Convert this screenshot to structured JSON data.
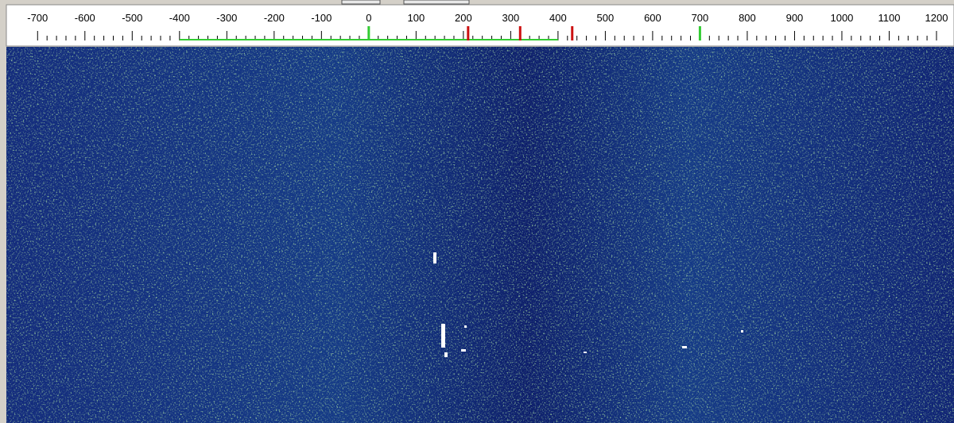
{
  "ruler": {
    "range": [
      -766,
      1237
    ],
    "ticks": [
      -700,
      -600,
      -500,
      -400,
      -300,
      -200,
      -100,
      0,
      100,
      200,
      300,
      400,
      500,
      600,
      700,
      800,
      900,
      1000,
      1100,
      1200
    ],
    "passband": [
      -400,
      400
    ],
    "passband_color": "#33cc33",
    "markers": [
      {
        "value": 0,
        "color": "#33cc33"
      },
      {
        "value": 700,
        "color": "#33cc33"
      },
      {
        "value": 210,
        "color": "#cc1111"
      },
      {
        "value": 320,
        "color": "#cc1111"
      },
      {
        "value": 430,
        "color": "#cc1111"
      }
    ]
  }
}
